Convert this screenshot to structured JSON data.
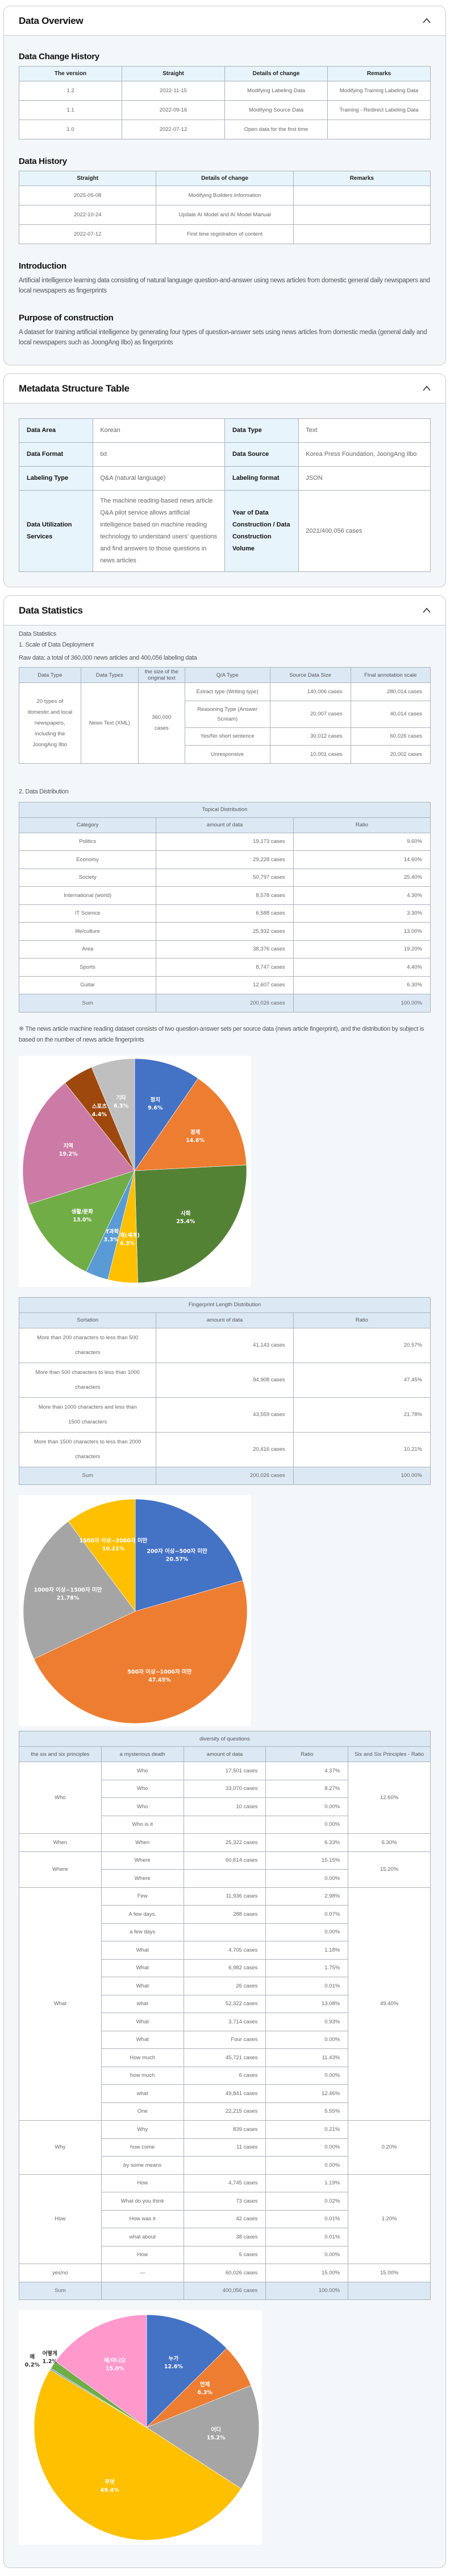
{
  "overview": {
    "title": "Data Overview",
    "change_history": {
      "title": "Data Change History",
      "headers": [
        "The version",
        "Straight",
        "Details of change",
        "Remarks"
      ],
      "rows": [
        [
          "1.2",
          "2022-11-15",
          "Modifying Labeling Data",
          "Modifying Training Labeling Data"
        ],
        [
          "1.1",
          "2022-09-16",
          "Modifying Source Data",
          "Training - Redirect Labeling Data"
        ],
        [
          "1.0",
          "2022-07-12",
          "Open data for the first time",
          ""
        ]
      ]
    },
    "data_history": {
      "title": "Data History",
      "headers": [
        "Straight",
        "Details of change",
        "Remarks"
      ],
      "rows": [
        [
          "2025-05-08",
          "Modifying Builders Information",
          ""
        ],
        [
          "2022-10-24",
          "Update AI Model and AI Model Manual",
          ""
        ],
        [
          "2022-07-12",
          "First time registration of content",
          ""
        ]
      ]
    },
    "introduction": {
      "title": "Introduction",
      "text": "Artificial intelligence learning data consisting of natural language question-and-answer using news articles from domestic general daily newspapers and local newspapers as fingerprints"
    },
    "purpose": {
      "title": "Purpose of construction",
      "text": "A dataset for training artificial intelligence by generating four types of question-answer sets using news articles from domestic media (general daily and local newspapers such as JoongAng Ilbo) as fingerprints"
    }
  },
  "metadata": {
    "title": "Metadata Structure Table",
    "rows": [
      [
        "Data Area",
        "Korean",
        "Data Type",
        "Text"
      ],
      [
        "Data Format",
        "txt",
        "Data Source",
        "Korea Press Foundation, JoongAng Ilbo"
      ],
      [
        "Labeling Type",
        "Q&A (natural language)",
        "Labeling format",
        "JSON"
      ],
      [
        "Data Utilization Services",
        "The machine reading-based news article Q&A pilot service allows artificial intelligence based on machine reading technology to understand users' questions and find answers to those questions in news articles",
        "Year of Data Construction / Data Construction Volume",
        "2021/400,056 cases"
      ]
    ]
  },
  "statistics": {
    "title": "Data Statistics",
    "intro": "Data Statistics",
    "scale_heading": "1. Scale of Data Deployment",
    "raw_data": "Raw data: a total of 360,000 news articles and 400,056 labeling data",
    "scale_table": {
      "headers": [
        "Data Type",
        "Data Types",
        "the size of the original text",
        "Q/A Type",
        "Source Data Size",
        "Final annotation scale"
      ],
      "data_type": "20 types of domestic and local newspapers, including the JoongAng Ilbo",
      "data_types": "News Text (XML)",
      "original_size": "360,000 cases",
      "rows": [
        [
          "Extract type (Writing type)",
          "140,006 cases",
          "280,014 cases"
        ],
        [
          "Reasoning Type (Answer Scream)",
          "20,007 cases",
          "40,014 cases"
        ],
        [
          "Yes/No short sentence",
          "30,012 cases",
          "60,026 cases"
        ],
        [
          "Unresponsive",
          "10,001 cases",
          "20,002 cases"
        ]
      ]
    },
    "distribution_heading": "2. Data Distribution",
    "topical": {
      "title": "Topical Distribution",
      "headers": [
        "Category",
        "amount of data",
        "Ratio"
      ],
      "rows": [
        [
          "Politics",
          "19,173 cases",
          "9.60%"
        ],
        [
          "Economy",
          "29,228 cases",
          "14.60%"
        ],
        [
          "Society",
          "50,797 cases",
          "25.40%"
        ],
        [
          "International (world)",
          "8,578 cases",
          "4.30%"
        ],
        [
          "IT Science",
          "6,588 cases",
          "3.30%"
        ],
        [
          "life/culture",
          "25,932 cases",
          "13.00%"
        ],
        [
          "Area",
          "38,376 cases",
          "19.20%"
        ],
        [
          "Sports",
          "8,747 cases",
          "4.40%"
        ],
        [
          "Guitar",
          "12,607 cases",
          "6.30%"
        ]
      ],
      "sum": [
        "Sum",
        "200,026 cases",
        "100.00%"
      ]
    },
    "note": "※ The news article machine reading dataset consists of two question-answer sets per source data (news article fingerprint), and the distribution by subject is based on the number of news article fingerprints",
    "fingerprint": {
      "title": "Fingerprint Length Distribution",
      "headers": [
        "Sortation",
        "amount of data",
        "Ratio"
      ],
      "rows": [
        [
          "More than 200 characters to less than 500 characters",
          "41,143 cases",
          "20.57%"
        ],
        [
          "More than 500 characters to less than 1000 characters",
          "94,908 cases",
          "47.45%"
        ],
        [
          "More than 1000 characters and less than 1500 characters",
          "43,559 cases",
          "21.78%"
        ],
        [
          "More than 1500 characters to less than 2000 characters",
          "20,416 cases",
          "10.21%"
        ]
      ],
      "sum": [
        "Sum",
        "200,026 cases",
        "100.00%"
      ]
    },
    "diversity": {
      "title": "diversity of questions",
      "headers": [
        "the six and six principles",
        "a mysterious death",
        "amount of data",
        "Ratio",
        "Six and Six Principles - Ratio"
      ],
      "groups": [
        {
          "principle": "Who",
          "ratio": "12.60%",
          "rows": [
            [
              "Who",
              "17,501 cases",
              "4.37%"
            ],
            [
              "Who",
              "33,070 cases",
              "8.27%"
            ],
            [
              "Who",
              "10 cases",
              "0.00%"
            ],
            [
              "Who is it",
              "",
              "0.00%"
            ]
          ]
        },
        {
          "principle": "When",
          "ratio": "6.30%",
          "rows": [
            [
              "When",
              "25,322 cases",
              "6.33%"
            ]
          ]
        },
        {
          "principle": "Where",
          "ratio": "15.20%",
          "rows": [
            [
              "Where",
              "60,614 cases",
              "15.15%"
            ],
            [
              "Where",
              "",
              "0.00%"
            ]
          ]
        },
        {
          "principle": "What",
          "ratio": "49.40%",
          "rows": [
            [
              "Few",
              "11,936 cases",
              "2.98%"
            ],
            [
              "A few days.",
              "288 cases",
              "0.07%"
            ],
            [
              "a few days",
              "",
              "0.00%"
            ],
            [
              "What",
              "4,705 cases",
              "1.18%"
            ],
            [
              "What",
              "6,982 cases",
              "1.75%"
            ],
            [
              "What",
              "26 cases",
              "0.01%"
            ],
            [
              "what",
              "52,322 cases",
              "13.08%"
            ],
            [
              "What",
              "3,714 cases",
              "0.93%"
            ],
            [
              "What",
              "Four cases",
              "0.00%"
            ],
            [
              "How much",
              "45,721 cases",
              "11.43%"
            ],
            [
              "how much",
              "6 cases",
              "0.00%"
            ],
            [
              "what",
              "49,841 cases",
              "12.46%"
            ],
            [
              "One",
              "22,215 cases",
              "5.55%"
            ]
          ]
        },
        {
          "principle": "Why",
          "ratio": "0.20%",
          "rows": [
            [
              "Why",
              "839 cases",
              "0.21%"
            ],
            [
              "how come",
              "11 cases",
              "0.00%"
            ],
            [
              "by some means",
              "",
              "0.00%"
            ]
          ]
        },
        {
          "principle": "How",
          "ratio": "1.20%",
          "rows": [
            [
              "How",
              "4,745 cases",
              "1.19%"
            ],
            [
              "What do you think",
              "73 cases",
              "0.02%"
            ],
            [
              "How was it",
              "42 cases",
              "0.01%"
            ],
            [
              "what about",
              "38 cases",
              "0.01%"
            ],
            [
              "How",
              "5 cases",
              "0.00%"
            ]
          ]
        },
        {
          "principle": "yes/no",
          "ratio": "15.00%",
          "rows": [
            [
              "—",
              "60,026 cases",
              "15.00%"
            ]
          ]
        }
      ],
      "sum": [
        "Sum",
        "",
        "400,056 cases",
        "100.00%",
        ""
      ]
    }
  },
  "chart_data": [
    {
      "type": "pie",
      "title": "",
      "labels": [
        "정치",
        "경제",
        "사회",
        "국제(세계)",
        "IT과학",
        "생활/문화",
        "지역",
        "스포츠",
        "기타"
      ],
      "values": [
        9.6,
        14.6,
        25.4,
        4.3,
        3.3,
        13.0,
        19.2,
        4.4,
        6.3
      ],
      "value_labels": [
        "9.6%",
        "14.6%",
        "25.4%",
        "4.3%",
        "3.3%",
        "13.0%",
        "19.2%",
        "4.4%",
        "6.3%"
      ],
      "colors": [
        "#4472c4",
        "#ed7d31",
        "#548235",
        "#ffc000",
        "#5b9bd5",
        "#70ad47",
        "#cc7ba7",
        "#9e480e",
        "#bfbfbf"
      ]
    },
    {
      "type": "pie",
      "title": "",
      "labels": [
        "200자 이상~500자 미만",
        "500자 이상~1000자 미만",
        "1000자 이상~1500자 미만",
        "1500자 이상~2000자 미만"
      ],
      "values": [
        20.57,
        47.45,
        21.78,
        10.21
      ],
      "value_labels": [
        "20.57%",
        "47.45%",
        "21.78%",
        "10.21%"
      ],
      "colors": [
        "#4472c4",
        "#ed7d31",
        "#a5a5a5",
        "#ffc000"
      ]
    },
    {
      "type": "pie",
      "title": "",
      "labels": [
        "누가",
        "언제",
        "어디",
        "무엇",
        "왜",
        "어떻게",
        "예/아니오"
      ],
      "values": [
        12.6,
        6.3,
        15.2,
        49.4,
        0.2,
        1.2,
        15.0
      ],
      "value_labels": [
        "12.6%",
        "6.3%",
        "15.2%",
        "49.4%",
        "0.2%",
        "1.2%",
        "15.0%"
      ],
      "colors": [
        "#4472c4",
        "#ed7d31",
        "#a5a5a5",
        "#ffc000",
        "#5b9bd5",
        "#70ad47",
        "#ff99cc"
      ]
    }
  ]
}
